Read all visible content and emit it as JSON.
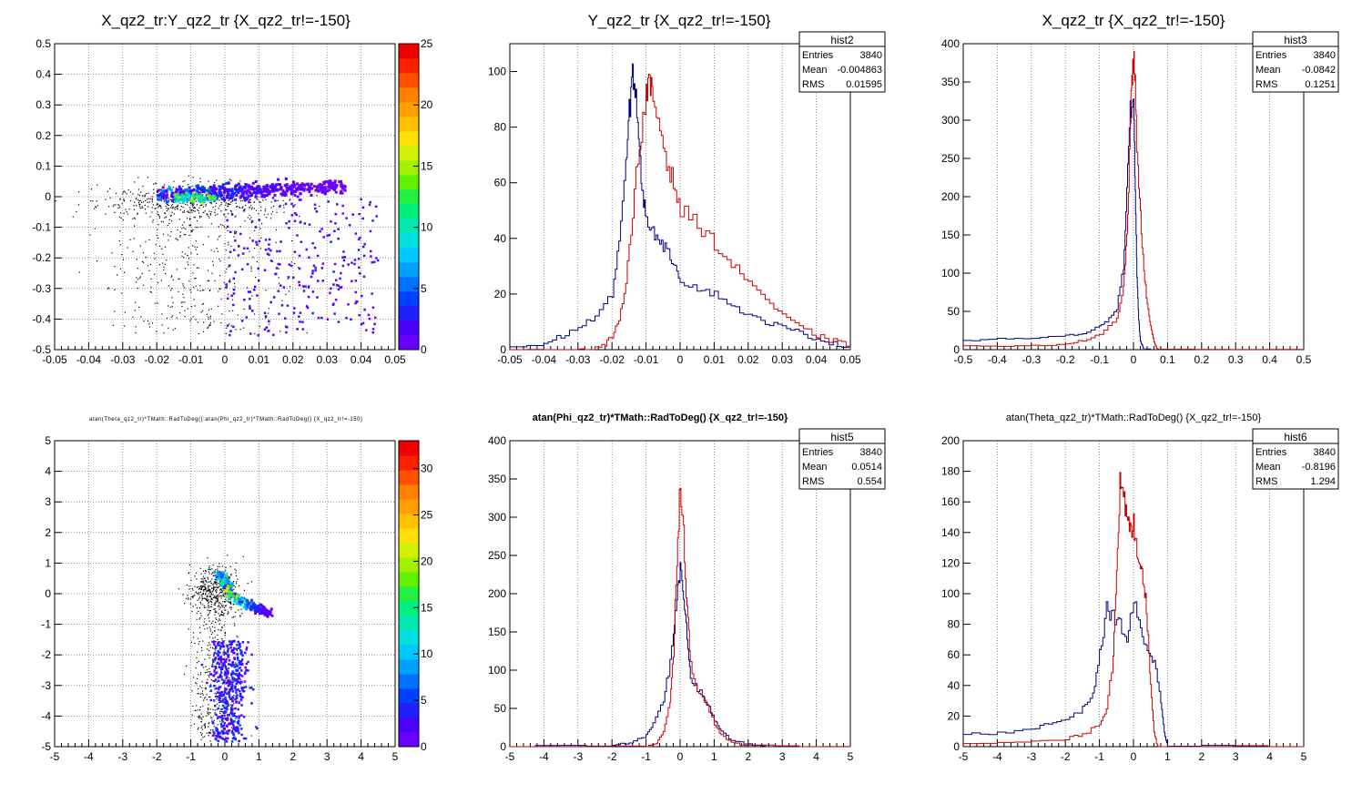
{
  "chart_data": [
    {
      "type": "heatmap",
      "title": "X_qz2_tr:Y_qz2_tr {X_qz2_tr!=-150}",
      "xlim": [
        -0.05,
        0.05
      ],
      "ylim": [
        -0.5,
        0.5
      ],
      "x_ticks": [
        "-0.05",
        "-0.04",
        "-0.03",
        "-0.02",
        "-0.01",
        "0",
        "0.01",
        "0.02",
        "0.03",
        "0.04",
        "0.05"
      ],
      "y_ticks": [
        "-0.5",
        "-0.4",
        "-0.3",
        "-0.2",
        "-0.1",
        "0",
        "0.1",
        "0.2",
        "0.3",
        "0.4",
        "0.5"
      ],
      "z_ticks": [
        "0",
        "5",
        "10",
        "15",
        "20",
        "25"
      ],
      "zlim": [
        0,
        25
      ],
      "grid": true
    },
    {
      "type": "line",
      "title": "Y_qz2_tr {X_qz2_tr!=-150}",
      "xlim": [
        -0.05,
        0.05
      ],
      "ylim": [
        0,
        110
      ],
      "x_ticks": [
        "-0.05",
        "-0.04",
        "-0.03",
        "-0.02",
        "-0.01",
        "0",
        "0.01",
        "0.02",
        "0.03",
        "0.04",
        "0.05"
      ],
      "y_ticks": [
        "0",
        "20",
        "40",
        "60",
        "80",
        "100"
      ],
      "stats": {
        "name": "hist2",
        "rows": [
          [
            "Entries",
            "3840"
          ],
          [
            "Mean",
            "-0.004863"
          ],
          [
            "RMS",
            "0.01595"
          ]
        ]
      },
      "series": [
        {
          "color": "#000080",
          "x": [
            -0.05,
            -0.04,
            -0.035,
            -0.03,
            -0.025,
            -0.02,
            -0.018,
            -0.016,
            -0.015,
            -0.014,
            -0.013,
            -0.012,
            -0.011,
            -0.01,
            -0.008,
            -0.006,
            -0.004,
            -0.002,
            0,
            0.005,
            0.01,
            0.015,
            0.02,
            0.025,
            0.03,
            0.035,
            0.04,
            0.045,
            0.05
          ],
          "y": [
            1,
            2,
            5,
            8,
            12,
            20,
            40,
            65,
            85,
            100,
            92,
            70,
            55,
            48,
            42,
            40,
            35,
            32,
            25,
            22,
            20,
            16,
            12,
            10,
            8,
            6,
            4,
            2,
            1
          ]
        },
        {
          "color": "#cc0000",
          "x": [
            -0.05,
            -0.03,
            -0.026,
            -0.022,
            -0.02,
            -0.018,
            -0.016,
            -0.014,
            -0.012,
            -0.01,
            -0.009,
            -0.008,
            -0.006,
            -0.004,
            -0.002,
            0,
            0.005,
            0.01,
            0.015,
            0.02,
            0.025,
            0.03,
            0.035,
            0.04,
            0.045,
            0.05
          ],
          "y": [
            0,
            0,
            0,
            2,
            5,
            10,
            25,
            50,
            75,
            92,
            95,
            90,
            80,
            68,
            60,
            50,
            45,
            38,
            30,
            25,
            18,
            12,
            8,
            5,
            3,
            1
          ]
        }
      ]
    },
    {
      "type": "line",
      "title": "X_qz2_tr {X_qz2_tr!=-150}",
      "xlim": [
        -0.5,
        0.5
      ],
      "ylim": [
        0,
        400
      ],
      "x_ticks": [
        "-0.5",
        "-0.4",
        "-0.3",
        "-0.2",
        "-0.1",
        "0",
        "0.1",
        "0.2",
        "0.3",
        "0.4",
        "0.5"
      ],
      "y_ticks": [
        "0",
        "50",
        "100",
        "150",
        "200",
        "250",
        "300",
        "350",
        "400"
      ],
      "stats": {
        "name": "hist3",
        "rows": [
          [
            "Entries",
            "3840"
          ],
          [
            "Mean",
            "-0.0842"
          ],
          [
            "RMS",
            "0.1251"
          ]
        ]
      },
      "series": [
        {
          "color": "#000080",
          "x": [
            -0.5,
            -0.4,
            -0.3,
            -0.2,
            -0.15,
            -0.1,
            -0.08,
            -0.05,
            -0.03,
            -0.02,
            -0.01,
            0,
            0.005,
            0.01,
            0.015,
            0.02,
            0.03,
            0.05
          ],
          "y": [
            12,
            14,
            15,
            18,
            22,
            30,
            38,
            55,
            110,
            200,
            320,
            330,
            200,
            100,
            40,
            10,
            0,
            0
          ]
        },
        {
          "color": "#cc0000",
          "x": [
            -0.5,
            -0.3,
            -0.2,
            -0.15,
            -0.1,
            -0.05,
            -0.03,
            -0.02,
            -0.01,
            -0.005,
            0,
            0.005,
            0.01,
            0.02,
            0.03,
            0.04,
            0.05,
            0.06,
            0.07,
            0.5
          ],
          "y": [
            5,
            5,
            8,
            12,
            20,
            40,
            80,
            150,
            280,
            360,
            380,
            340,
            250,
            180,
            100,
            60,
            30,
            10,
            0,
            0
          ]
        }
      ]
    },
    {
      "type": "heatmap",
      "title": "atan(Theta_qz2_tr)*TMath::RadToDeg():atan(Phi_qz2_tr)*TMath::RadToDeg() {X_qz2_tr!=-150}",
      "xlim": [
        -5,
        5
      ],
      "ylim": [
        -5,
        5
      ],
      "x_ticks": [
        "-5",
        "-4",
        "-3",
        "-2",
        "-1",
        "0",
        "1",
        "2",
        "3",
        "4",
        "5"
      ],
      "y_ticks": [
        "-5",
        "-4",
        "-3",
        "-2",
        "-1",
        "0",
        "1",
        "2",
        "3",
        "4",
        "5"
      ],
      "z_ticks": [
        "0",
        "5",
        "10",
        "15",
        "20",
        "25",
        "30"
      ],
      "zlim": [
        0,
        33
      ],
      "grid": true
    },
    {
      "type": "line",
      "title": "atan(Phi_qz2_tr)*TMath::RadToDeg() {X_qz2_tr!=-150}",
      "xlim": [
        -5,
        5
      ],
      "ylim": [
        0,
        400
      ],
      "x_ticks": [
        "-5",
        "-4",
        "-3",
        "-2",
        "-1",
        "0",
        "1",
        "2",
        "3",
        "4",
        "5"
      ],
      "y_ticks": [
        "0",
        "50",
        "100",
        "150",
        "200",
        "250",
        "300",
        "350",
        "400"
      ],
      "stats": {
        "name": "hist5",
        "rows": [
          [
            "Entries",
            "3840"
          ],
          [
            "Mean",
            "0.0514"
          ],
          [
            "RMS",
            "0.554"
          ]
        ]
      },
      "series": [
        {
          "color": "#000080",
          "x": [
            -5,
            -2,
            -1.5,
            -1,
            -0.8,
            -0.5,
            -0.3,
            -0.1,
            0,
            0.1,
            0.2,
            0.3,
            0.5,
            0.8,
            1,
            1.2,
            1.5,
            2,
            2.5,
            5
          ],
          "y": [
            0,
            2,
            5,
            15,
            30,
            60,
            110,
            200,
            230,
            200,
            140,
            90,
            75,
            55,
            35,
            20,
            8,
            3,
            0,
            0
          ]
        },
        {
          "color": "#cc0000",
          "x": [
            -5,
            -1,
            -0.7,
            -0.5,
            -0.3,
            -0.2,
            -0.1,
            0,
            0.1,
            0.2,
            0.3,
            0.5,
            0.7,
            1,
            1.2,
            1.5,
            2,
            5
          ],
          "y": [
            0,
            0,
            5,
            20,
            60,
            120,
            250,
            350,
            280,
            180,
            110,
            75,
            60,
            30,
            15,
            5,
            1,
            0
          ]
        }
      ]
    },
    {
      "type": "line",
      "title": "atan(Theta_qz2_tr)*TMath::RadToDeg() {X_qz2_tr!=-150}",
      "xlim": [
        -5,
        5
      ],
      "ylim": [
        0,
        200
      ],
      "x_ticks": [
        "-5",
        "-4",
        "-3",
        "-2",
        "-1",
        "0",
        "1",
        "2",
        "3",
        "4",
        "5"
      ],
      "y_ticks": [
        "0",
        "20",
        "40",
        "60",
        "80",
        "100",
        "120",
        "140",
        "160",
        "180",
        "200"
      ],
      "stats": {
        "name": "hist6",
        "rows": [
          [
            "Entries",
            "3840"
          ],
          [
            "Mean",
            "-0.8196"
          ],
          [
            "RMS",
            "1.294"
          ]
        ]
      },
      "series": [
        {
          "color": "#000080",
          "x": [
            -5,
            -4,
            -3,
            -2.5,
            -2,
            -1.5,
            -1.2,
            -1,
            -0.8,
            -0.6,
            -0.4,
            -0.2,
            0,
            0.2,
            0.4,
            0.6,
            0.8,
            0.9,
            1,
            5
          ],
          "y": [
            8,
            9,
            12,
            15,
            18,
            25,
            35,
            60,
            90,
            85,
            80,
            70,
            95,
            75,
            65,
            55,
            30,
            10,
            0,
            0
          ]
        },
        {
          "color": "#cc0000",
          "x": [
            -5,
            -3,
            -2,
            -1.5,
            -1,
            -0.8,
            -0.6,
            -0.5,
            -0.4,
            -0.3,
            -0.2,
            -0.1,
            0,
            0.1,
            0.2,
            0.3,
            0.4,
            0.5,
            0.6,
            0.7,
            0.8,
            5
          ],
          "y": [
            2,
            3,
            5,
            8,
            15,
            25,
            60,
            120,
            170,
            160,
            150,
            140,
            145,
            130,
            120,
            110,
            80,
            40,
            10,
            0,
            0,
            0
          ]
        }
      ]
    }
  ]
}
